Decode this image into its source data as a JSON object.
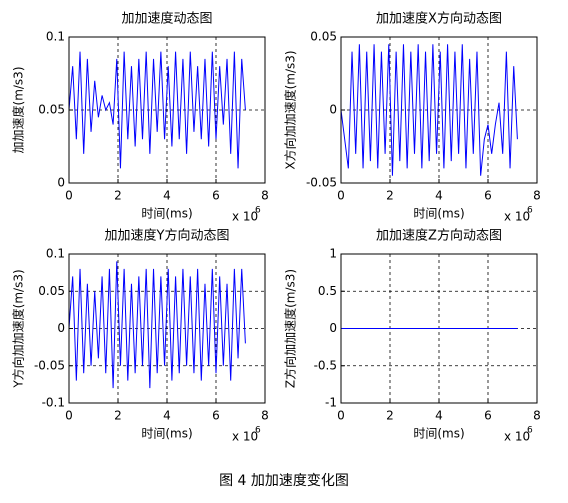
{
  "chart_data": [
    {
      "type": "line",
      "title": "加加速度动态图",
      "x_label": "时间(ms)",
      "y_label": "加加速度(m/s3)",
      "x_scale": "x 10",
      "x_scale_exponent": "6",
      "color": "#0000ff",
      "xlim": [
        0,
        8
      ],
      "xticks": [
        0,
        2,
        4,
        6,
        8
      ],
      "ylim": [
        0,
        0.1
      ],
      "yticks": [
        0,
        0.05,
        0.1
      ],
      "grid": true,
      "x": [
        0,
        0.15,
        0.3,
        0.45,
        0.6,
        0.75,
        0.9,
        1.05,
        1.2,
        1.35,
        1.5,
        1.65,
        1.8,
        1.95,
        2.1,
        2.25,
        2.4,
        2.55,
        2.7,
        2.85,
        3,
        3.15,
        3.3,
        3.45,
        3.6,
        3.75,
        3.9,
        4.05,
        4.2,
        4.35,
        4.5,
        4.65,
        4.8,
        4.95,
        5.1,
        5.25,
        5.4,
        5.55,
        5.7,
        5.85,
        6,
        6.15,
        6.3,
        6.45,
        6.6,
        6.75,
        6.9,
        7.05,
        7.2
      ],
      "values": [
        0.05,
        0.08,
        0.03,
        0.09,
        0.02,
        0.085,
        0.035,
        0.07,
        0.045,
        0.06,
        0.05,
        0.055,
        0.04,
        0.085,
        0.01,
        0.09,
        0.03,
        0.08,
        0.025,
        0.085,
        0.03,
        0.09,
        0.02,
        0.085,
        0.035,
        0.09,
        0.03,
        0.08,
        0.025,
        0.09,
        0.03,
        0.085,
        0.02,
        0.09,
        0.035,
        0.08,
        0.03,
        0.085,
        0.025,
        0.09,
        0.03,
        0.08,
        0.04,
        0.085,
        0.02,
        0.09,
        0.01,
        0.085,
        0.05
      ]
    },
    {
      "type": "line",
      "title": "加加速度X方向动态图",
      "x_label": "时间(ms)",
      "y_label": "X方向加加速度(m/s3)",
      "x_scale": "x 10",
      "x_scale_exponent": "6",
      "color": "#0000ff",
      "xlim": [
        0,
        8
      ],
      "xticks": [
        0,
        2,
        4,
        6,
        8
      ],
      "ylim": [
        -0.05,
        0.05
      ],
      "yticks": [
        -0.05,
        0,
        0.05
      ],
      "grid": true,
      "x": [
        0,
        0.15,
        0.3,
        0.45,
        0.6,
        0.75,
        0.9,
        1.05,
        1.2,
        1.35,
        1.5,
        1.65,
        1.8,
        1.95,
        2.1,
        2.25,
        2.4,
        2.55,
        2.7,
        2.85,
        3,
        3.15,
        3.3,
        3.45,
        3.6,
        3.75,
        3.9,
        4.05,
        4.2,
        4.35,
        4.5,
        4.65,
        4.8,
        4.95,
        5.1,
        5.25,
        5.4,
        5.55,
        5.7,
        5.85,
        6,
        6.15,
        6.3,
        6.45,
        6.6,
        6.75,
        6.9,
        7.05,
        7.2
      ],
      "values": [
        0,
        -0.02,
        -0.04,
        0.04,
        -0.03,
        0.045,
        -0.04,
        0.04,
        -0.035,
        0.045,
        -0.04,
        0.04,
        -0.03,
        0.045,
        -0.045,
        0.04,
        -0.035,
        0.045,
        -0.04,
        0.04,
        -0.03,
        0.045,
        -0.04,
        0.04,
        -0.035,
        0.045,
        -0.03,
        0.04,
        -0.04,
        0.045,
        -0.035,
        0.04,
        -0.03,
        0.045,
        -0.04,
        0.035,
        -0.03,
        0.04,
        -0.045,
        -0.02,
        -0.01,
        -0.03,
        -0.01,
        0.005,
        -0.03,
        0.04,
        -0.04,
        0.03,
        -0.02
      ]
    },
    {
      "type": "line",
      "title": "加加速度Y方向动态图",
      "x_label": "时间(ms)",
      "y_label": "Y方向加加速度(m/s3)",
      "x_scale": "x 10",
      "x_scale_exponent": "6",
      "color": "#0000ff",
      "xlim": [
        0,
        8
      ],
      "xticks": [
        0,
        2,
        4,
        6,
        8
      ],
      "ylim": [
        -0.1,
        0.1
      ],
      "yticks": [
        -0.1,
        -0.05,
        0,
        0.05,
        0.1
      ],
      "grid": true,
      "x": [
        0,
        0.15,
        0.3,
        0.45,
        0.6,
        0.75,
        0.9,
        1.05,
        1.2,
        1.35,
        1.5,
        1.65,
        1.8,
        1.95,
        2.1,
        2.25,
        2.4,
        2.55,
        2.7,
        2.85,
        3,
        3.15,
        3.3,
        3.45,
        3.6,
        3.75,
        3.9,
        4.05,
        4.2,
        4.35,
        4.5,
        4.65,
        4.8,
        4.95,
        5.1,
        5.25,
        5.4,
        5.55,
        5.7,
        5.85,
        6,
        6.15,
        6.3,
        6.45,
        6.6,
        6.75,
        6.9,
        7.05,
        7.2
      ],
      "values": [
        0,
        0.07,
        -0.07,
        0.08,
        -0.06,
        0.06,
        -0.05,
        0.05,
        -0.04,
        0.07,
        -0.06,
        0.08,
        -0.08,
        0.09,
        -0.05,
        0.08,
        -0.07,
        0.06,
        -0.06,
        0.07,
        -0.05,
        0.08,
        -0.08,
        0.08,
        -0.06,
        0.07,
        -0.05,
        0.08,
        -0.07,
        0.07,
        -0.06,
        0.08,
        -0.05,
        0.07,
        -0.06,
        0.08,
        -0.07,
        0.06,
        -0.05,
        0.08,
        -0.06,
        0.07,
        -0.05,
        0.06,
        -0.07,
        0.08,
        -0.04,
        0.08,
        -0.02
      ]
    },
    {
      "type": "line",
      "title": "加加速度Z方向动态图",
      "x_label": "时间(ms)",
      "y_label": "Z方向加加速度(m/s3)",
      "x_scale": "x 10",
      "x_scale_exponent": "6",
      "color": "#0000ff",
      "xlim": [
        0,
        8
      ],
      "xticks": [
        0,
        2,
        4,
        6,
        8
      ],
      "ylim": [
        -1,
        1
      ],
      "yticks": [
        -1,
        -0.5,
        0,
        0.5,
        1
      ],
      "grid": true,
      "x": [
        0,
        7.2
      ],
      "values": [
        0,
        0
      ]
    }
  ],
  "caption": "图 4  加加速度变化图"
}
